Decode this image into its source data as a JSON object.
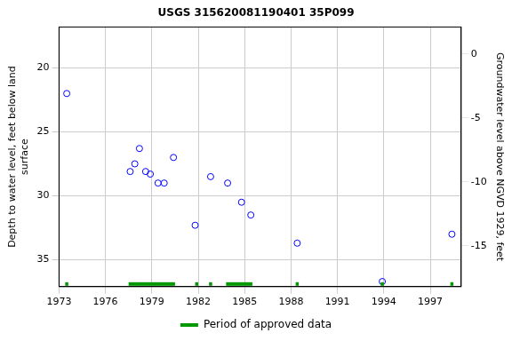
{
  "chart_data": {
    "type": "scatter",
    "title": "USGS 315620081190401 35P099",
    "y_label": [
      "Depth to water level, feet below land",
      "surface"
    ],
    "y2_label": "Groundwater level above NGVD 1929, feet",
    "x": [
      1973.5,
      1977.6,
      1977.9,
      1978.2,
      1978.6,
      1978.9,
      1979.4,
      1979.8,
      1980.4,
      1981.8,
      1982.8,
      1983.9,
      1984.8,
      1985.4,
      1988.4,
      1993.9,
      1998.4
    ],
    "values": [
      22.0,
      28.1,
      27.5,
      26.3,
      28.1,
      28.3,
      29.0,
      29.0,
      27.0,
      32.3,
      28.5,
      29.0,
      30.5,
      31.5,
      33.7,
      36.7,
      33.0
    ],
    "color": "#0000ff",
    "marker": "circle",
    "xlim": [
      1973,
      1999
    ],
    "xticks": [
      1973,
      1976,
      1979,
      1982,
      1985,
      1988,
      1991,
      1994,
      1997
    ],
    "ylim": [
      37.1,
      16.8
    ],
    "yticks": [
      20,
      25,
      30,
      35
    ],
    "y2lim": [
      -18.2,
      2.1
    ],
    "y2ticks": [
      -15,
      -10,
      -5,
      0
    ],
    "approved_periods": {
      "name": "Period of approved data",
      "color": "#009900",
      "ranges": [
        [
          1973.4,
          1973.6
        ],
        [
          1977.5,
          1980.5
        ],
        [
          1981.8,
          1982.0
        ],
        [
          1982.7,
          1982.9
        ],
        [
          1983.8,
          1985.5
        ],
        [
          1988.3,
          1988.5
        ],
        [
          1993.8,
          1994.0
        ],
        [
          1998.3,
          1998.5
        ]
      ]
    },
    "grid": true,
    "legend": "bottom"
  }
}
